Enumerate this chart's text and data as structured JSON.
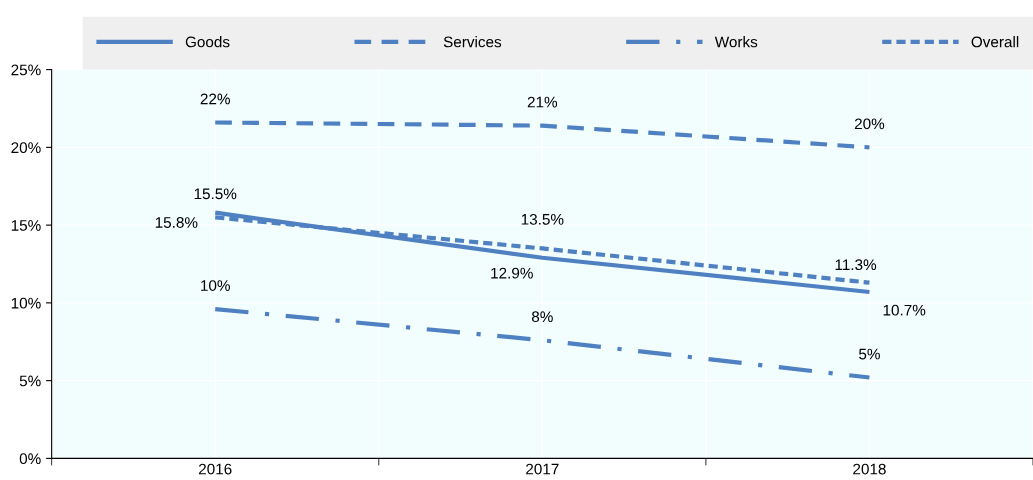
{
  "chart_data": {
    "type": "line",
    "categories": [
      "2016",
      "2017",
      "2018"
    ],
    "series": [
      {
        "name": "Goods",
        "color": "#4f81c2",
        "line_style": "solid",
        "values": [
          15.8,
          12.9,
          10.7
        ],
        "value_labels": [
          "15.8%",
          "12.9%",
          "10.7%"
        ]
      },
      {
        "name": "Services",
        "color": "#4f81c2",
        "line_style": "dashed",
        "values": [
          21.6,
          21.4,
          20.0
        ],
        "value_labels": [
          "22%",
          "21%",
          "20%"
        ]
      },
      {
        "name": "Works",
        "color": "#4f81c2",
        "line_style": "dashdot",
        "values": [
          9.6,
          7.6,
          5.2
        ],
        "value_labels": [
          "10%",
          "8%",
          "5%"
        ]
      },
      {
        "name": "Overall",
        "color": "#4f81c2",
        "line_style": "dotted",
        "values": [
          15.5,
          13.5,
          11.3
        ],
        "value_labels": [
          "15.5%",
          "13.5%",
          "11.3%"
        ]
      }
    ],
    "ylim": [
      0,
      25
    ],
    "yticks": [
      {
        "value": 0,
        "label": "0%"
      },
      {
        "value": 5,
        "label": "5%"
      },
      {
        "value": 10,
        "label": "10%"
      },
      {
        "value": 15,
        "label": "15%"
      },
      {
        "value": 20,
        "label": "20%"
      },
      {
        "value": 25,
        "label": "25%"
      }
    ],
    "grid": true,
    "legend": "top",
    "marker": "none"
  }
}
